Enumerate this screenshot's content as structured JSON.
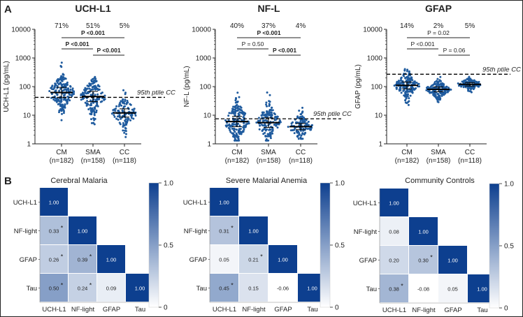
{
  "panel_labels": {
    "a": "A",
    "b": "B"
  },
  "chart_data": [
    {
      "type": "scatter",
      "title": "UCH-L1",
      "ylabel": "UCH-L1 (pg/mL)",
      "yscale": "log",
      "ylim": [
        1,
        10000
      ],
      "yticks": [
        "1",
        "10",
        "100",
        "1000",
        "10000"
      ],
      "categories": [
        "CM\n(n=182)",
        "SMA\n(n=158)",
        "CC\n(n=118)"
      ],
      "percents": [
        "71%",
        "51%",
        "5%"
      ],
      "n": [
        182,
        158,
        118
      ],
      "center": [
        62,
        45,
        12
      ],
      "spread": [
        0.3,
        0.3,
        0.24
      ],
      "min": [
        1.6,
        2,
        1
      ],
      "max": [
        1200,
        500,
        110
      ],
      "threshold": 42,
      "threshold_label": "95th ptile CC",
      "brackets": [
        {
          "from": 0,
          "to": 2,
          "label": "P <0.001",
          "bold": true,
          "row": 0
        },
        {
          "from": 0,
          "to": 1,
          "label": "P <0.001",
          "bold": true,
          "row": 1
        },
        {
          "from": 1,
          "to": 2,
          "label": "P <0.001",
          "bold": true,
          "row": 2
        }
      ],
      "color": "#1f5b9e"
    },
    {
      "type": "scatter",
      "title": "NF-L",
      "ylabel": "NF-L (pg/mL)",
      "yscale": "log",
      "ylim": [
        1,
        10000
      ],
      "yticks": [
        "1",
        "10",
        "100",
        "1000",
        "10000"
      ],
      "categories": [
        "CM\n(n=182)",
        "SMA\n(n=158)",
        "CC\n(n=118)"
      ],
      "percents": [
        "40%",
        "37%",
        "4%"
      ],
      "n": [
        182,
        158,
        118
      ],
      "center": [
        6,
        5.5,
        4
      ],
      "spread": [
        0.3,
        0.28,
        0.18
      ],
      "min": [
        1.3,
        1.3,
        1.5
      ],
      "max": [
        800,
        180,
        30
      ],
      "threshold": 7.5,
      "threshold_label": "95th ptile CC",
      "brackets": [
        {
          "from": 0,
          "to": 2,
          "label": "P <0.001",
          "bold": true,
          "row": 0
        },
        {
          "from": 0,
          "to": 1,
          "label": "P = 0.50",
          "bold": false,
          "row": 1
        },
        {
          "from": 1,
          "to": 2,
          "label": "P <0.001",
          "bold": true,
          "row": 2
        }
      ],
      "color": "#1f5b9e"
    },
    {
      "type": "scatter",
      "title": "GFAP",
      "ylabel": "GFAP (pg/mL)",
      "yscale": "log",
      "ylim": [
        1,
        10000
      ],
      "yticks": [
        "1",
        "10",
        "100",
        "1000",
        "10000"
      ],
      "categories": [
        "CM\n(n=182)",
        "SMA\n(n=158)",
        "CC\n(n=118)"
      ],
      "percents": [
        "14%",
        "2%",
        "5%"
      ],
      "n": [
        182,
        158,
        118
      ],
      "center": [
        110,
        80,
        120
      ],
      "spread": [
        0.2,
        0.14,
        0.1
      ],
      "min": [
        18,
        12,
        60
      ],
      "max": [
        9000,
        320,
        300
      ],
      "threshold": 270,
      "threshold_label": "95th ptile CC",
      "brackets": [
        {
          "from": 0,
          "to": 2,
          "label": "P = 0.02",
          "bold": false,
          "row": 0
        },
        {
          "from": 0,
          "to": 1,
          "label": "P <0.001",
          "bold": false,
          "row": 1
        },
        {
          "from": 1,
          "to": 2,
          "label": "P = 0.06",
          "bold": false,
          "row": 2
        }
      ],
      "color": "#1f5b9e"
    },
    {
      "type": "heatmap",
      "title": "Cerebral Malaria",
      "labels": [
        "UCH-L1",
        "NF-light",
        "GFAP",
        "Tau"
      ],
      "values": [
        [
          1.0,
          null,
          null,
          null
        ],
        [
          0.33,
          1.0,
          null,
          null
        ],
        [
          0.26,
          0.39,
          1.0,
          null
        ],
        [
          0.5,
          0.24,
          0.09,
          1.0
        ]
      ],
      "display": [
        [
          "1.00",
          "",
          "",
          ""
        ],
        [
          "0.33",
          "1.00",
          "",
          ""
        ],
        [
          "0.26",
          "0.39",
          "1.00",
          ""
        ],
        [
          "0.50",
          "0.24",
          "0.09",
          "1.00"
        ]
      ],
      "significant": [
        [
          false,
          false,
          false,
          false
        ],
        [
          true,
          false,
          false,
          false
        ],
        [
          true,
          true,
          false,
          false
        ],
        [
          true,
          true,
          false,
          false
        ]
      ],
      "colorbar_ticks": [
        "0",
        "0.5",
        "1.0"
      ],
      "colormap": [
        "#ffffff",
        "#0d3f8f"
      ]
    },
    {
      "type": "heatmap",
      "title": "Severe Malarial Anemia",
      "labels": [
        "UCH-L1",
        "NF-light",
        "GFAP",
        "Tau"
      ],
      "values": [
        [
          1.0,
          null,
          null,
          null
        ],
        [
          0.31,
          1.0,
          null,
          null
        ],
        [
          0.05,
          0.21,
          1.0,
          null
        ],
        [
          0.45,
          0.15,
          -0.06,
          1.0
        ]
      ],
      "display": [
        [
          "1.00",
          "",
          "",
          ""
        ],
        [
          "0.31",
          "1.00",
          "",
          ""
        ],
        [
          "0.05",
          "0.21",
          "1.00",
          ""
        ],
        [
          "0.45",
          "0.15",
          "-0.06",
          "1.00"
        ]
      ],
      "significant": [
        [
          false,
          false,
          false,
          false
        ],
        [
          true,
          false,
          false,
          false
        ],
        [
          false,
          true,
          false,
          false
        ],
        [
          true,
          false,
          false,
          false
        ]
      ],
      "colorbar_ticks": [
        "0",
        "0.5",
        "1.0"
      ],
      "colormap": [
        "#ffffff",
        "#0d3f8f"
      ]
    },
    {
      "type": "heatmap",
      "title": "Community Controls",
      "labels": [
        "UCH-L1",
        "NF-light",
        "GFAP",
        "Tau"
      ],
      "values": [
        [
          1.0,
          null,
          null,
          null
        ],
        [
          0.08,
          1.0,
          null,
          null
        ],
        [
          0.2,
          0.3,
          1.0,
          null
        ],
        [
          0.38,
          -0.08,
          0.05,
          1.0
        ]
      ],
      "display": [
        [
          "1.00",
          "",
          "",
          ""
        ],
        [
          "0.08",
          "1.00",
          "",
          ""
        ],
        [
          "0.20",
          "0.30",
          "1.00",
          ""
        ],
        [
          "0.38",
          "-0.08",
          "0.05",
          "1.00"
        ]
      ],
      "significant": [
        [
          false,
          false,
          false,
          false
        ],
        [
          false,
          false,
          false,
          false
        ],
        [
          false,
          true,
          false,
          false
        ],
        [
          true,
          false,
          false,
          false
        ]
      ],
      "colorbar_ticks": [
        "0",
        "0.5",
        "1.0"
      ],
      "colormap": [
        "#ffffff",
        "#0d3f8f"
      ]
    }
  ]
}
